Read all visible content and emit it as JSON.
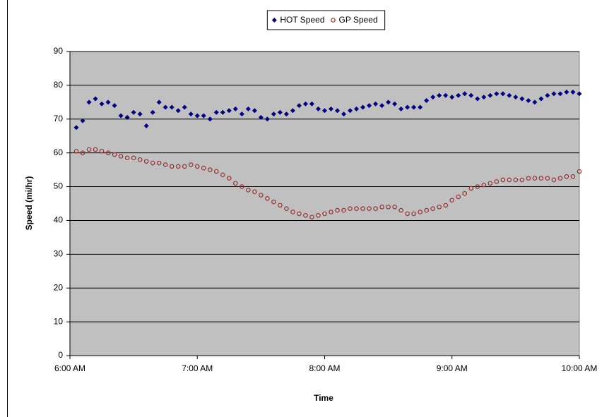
{
  "chart_data": {
    "type": "scatter",
    "x_label": "Time",
    "y_label": "Speed (mi/hr)",
    "x": [
      363,
      366,
      369,
      372,
      375,
      378,
      381,
      384,
      387,
      390,
      393,
      396,
      399,
      402,
      405,
      408,
      411,
      414,
      417,
      420,
      423,
      426,
      429,
      432,
      435,
      438,
      441,
      444,
      447,
      450,
      453,
      456,
      459,
      462,
      465,
      468,
      471,
      474,
      477,
      480,
      483,
      486,
      489,
      492,
      495,
      498,
      501,
      504,
      507,
      510,
      513,
      516,
      519,
      522,
      525,
      528,
      531,
      534,
      537,
      540,
      543,
      546,
      549,
      552,
      555,
      558,
      561,
      564,
      567,
      570,
      573,
      576,
      579,
      582,
      585,
      588,
      591,
      594,
      597,
      600
    ],
    "series": [
      {
        "name": "HOT Speed",
        "color": "#000080",
        "marker": "diamond",
        "values": [
          67.5,
          69.5,
          75,
          76,
          74.5,
          75,
          74,
          71,
          70.5,
          72,
          71.5,
          68,
          72,
          75,
          73.5,
          73.5,
          72.5,
          73.5,
          71.5,
          71,
          71,
          70,
          72,
          72,
          72.5,
          73,
          71.5,
          73,
          72.5,
          70.5,
          70,
          71.5,
          72,
          71.5,
          72.5,
          74,
          74.5,
          74.5,
          73,
          72.5,
          73,
          72.5,
          71.5,
          72.5,
          73,
          73.5,
          74,
          74.5,
          74,
          75,
          74.5,
          73,
          73.5,
          73.5,
          73.5,
          75.5,
          76.5,
          77,
          77,
          76.5,
          77,
          77.5,
          77,
          76,
          76.5,
          77,
          77.5,
          77.5,
          77,
          76.5,
          76,
          75.5,
          75,
          76,
          77,
          77.5,
          77.5,
          78,
          78,
          77.5
        ]
      },
      {
        "name": "GP Speed",
        "color": "#993333",
        "marker": "circle",
        "values": [
          60.5,
          60,
          61,
          61,
          60.5,
          60,
          59.5,
          59,
          58.5,
          58.5,
          58,
          57.5,
          57,
          57,
          56.5,
          56,
          56,
          56,
          56.5,
          56,
          55.5,
          55,
          54.5,
          53.5,
          52.5,
          51,
          50,
          49,
          48.5,
          47.5,
          46.5,
          45.5,
          44.5,
          43.5,
          42.5,
          42,
          41.5,
          41,
          41.5,
          42,
          42.5,
          43,
          43,
          43.5,
          43.5,
          43.5,
          43.5,
          43.5,
          44,
          44,
          44,
          43,
          42,
          42,
          42.5,
          43,
          43.5,
          44,
          44.5,
          46,
          47,
          48,
          49.5,
          50,
          50.5,
          51,
          51.5,
          52,
          52,
          52,
          52,
          52.5,
          52.5,
          52.5,
          52.5,
          52,
          52.5,
          53,
          53,
          54.5
        ]
      }
    ],
    "xlim": [
      360,
      600
    ],
    "xticks": [
      {
        "value": 360,
        "label": "6:00 AM"
      },
      {
        "value": 420,
        "label": "7:00 AM"
      },
      {
        "value": 480,
        "label": "8:00 AM"
      },
      {
        "value": 540,
        "label": "9:00 AM"
      },
      {
        "value": 600,
        "label": "10:00 AM"
      }
    ],
    "ylim": [
      0,
      90
    ],
    "yticks": [
      0,
      10,
      20,
      30,
      40,
      50,
      60,
      70,
      80,
      90
    ],
    "grid": true,
    "legend": "top",
    "plot_background": "#c0c0c0"
  }
}
